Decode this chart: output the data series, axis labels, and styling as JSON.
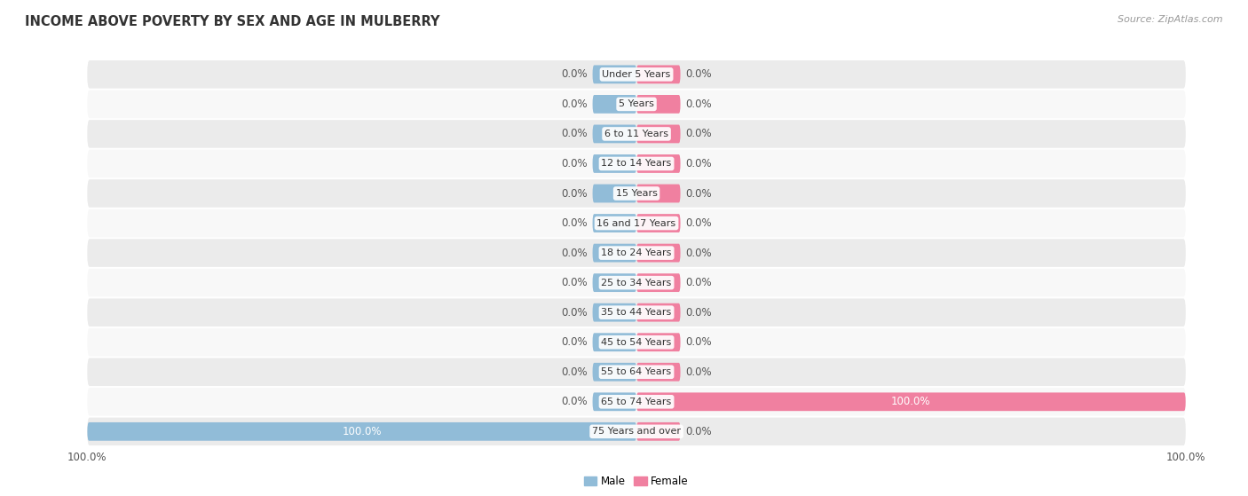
{
  "title": "INCOME ABOVE POVERTY BY SEX AND AGE IN MULBERRY",
  "source": "Source: ZipAtlas.com",
  "categories": [
    "Under 5 Years",
    "5 Years",
    "6 to 11 Years",
    "12 to 14 Years",
    "15 Years",
    "16 and 17 Years",
    "18 to 24 Years",
    "25 to 34 Years",
    "35 to 44 Years",
    "45 to 54 Years",
    "55 to 64 Years",
    "65 to 74 Years",
    "75 Years and over"
  ],
  "male_values": [
    0.0,
    0.0,
    0.0,
    0.0,
    0.0,
    0.0,
    0.0,
    0.0,
    0.0,
    0.0,
    0.0,
    0.0,
    100.0
  ],
  "female_values": [
    0.0,
    0.0,
    0.0,
    0.0,
    0.0,
    0.0,
    0.0,
    0.0,
    0.0,
    0.0,
    0.0,
    100.0,
    0.0
  ],
  "male_color": "#91bcd8",
  "female_color": "#f080a0",
  "male_label": "Male",
  "female_label": "Female",
  "row_bg_odd": "#ebebeb",
  "row_bg_even": "#f8f8f8",
  "max_value": 100.0,
  "label_color": "#555555",
  "title_fontsize": 10.5,
  "label_fontsize": 8.5,
  "category_fontsize": 8.0,
  "axis_label_fontsize": 8.5,
  "stub_size": 8.0
}
